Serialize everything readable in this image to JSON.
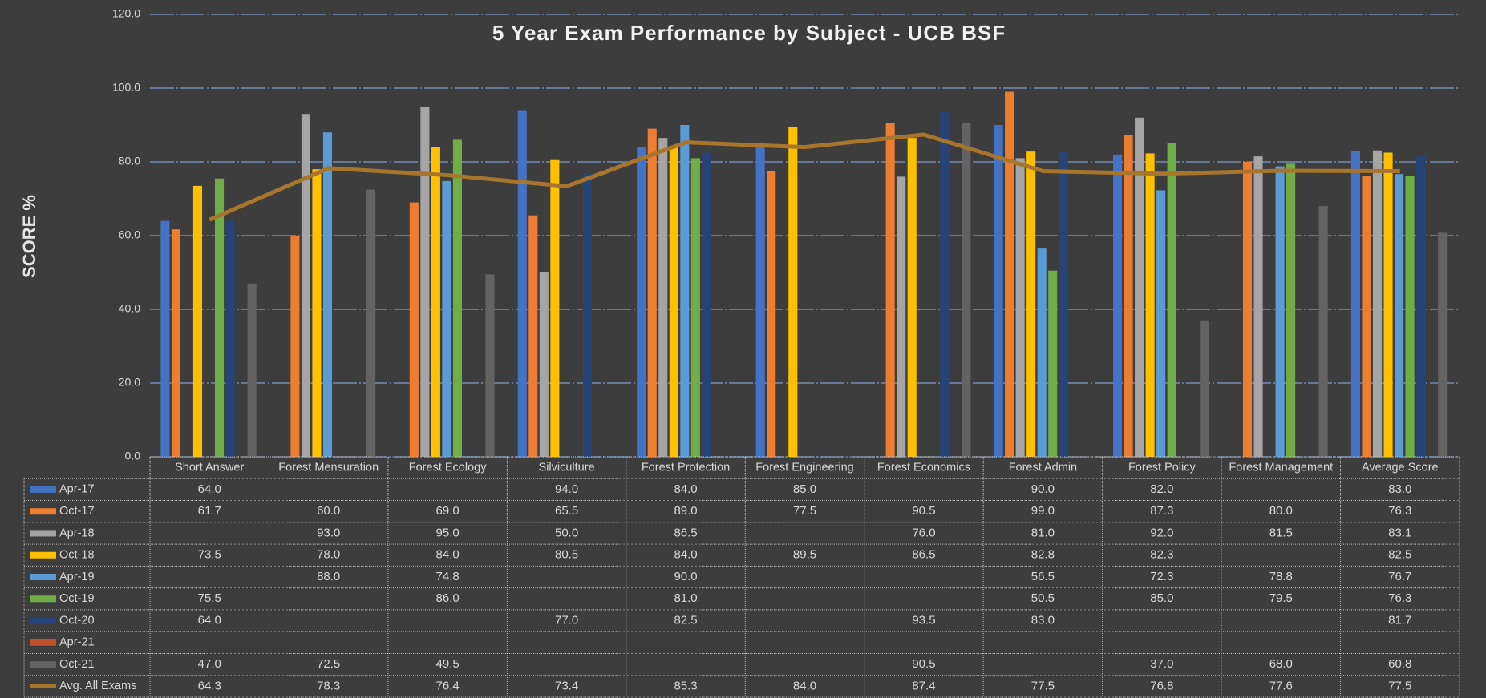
{
  "chart_data": {
    "type": "bar",
    "title": "5 Year Exam Performance by Subject - UCB BSF",
    "y_label": "SCORE %",
    "categories": [
      "Short Answer",
      "Forest Mensuration",
      "Forest Ecology",
      "Silviculture",
      "Forest Protection",
      "Forest Engineering",
      "Forest Economics",
      "Forest Admin",
      "Forest Policy",
      "Forest Management",
      "Average Score"
    ],
    "ylim": [
      0,
      120
    ],
    "yticks": [
      {
        "value": 0,
        "label": "0.0"
      },
      {
        "value": 20,
        "label": "20.0"
      },
      {
        "value": 40,
        "label": "40.0"
      },
      {
        "value": 60,
        "label": "60.0"
      },
      {
        "value": 80,
        "label": "80.0"
      },
      {
        "value": 100,
        "label": "100.0"
      },
      {
        "value": 120,
        "label": "120.0"
      }
    ],
    "grid": true,
    "series": [
      {
        "name": "Apr-17",
        "color": "#4472c4",
        "values": [
          64.0,
          null,
          null,
          94.0,
          84.0,
          85.0,
          null,
          90.0,
          82.0,
          null,
          83.0
        ],
        "value_labels": [
          "64.0",
          null,
          null,
          "94.0",
          "84.0",
          "85.0",
          null,
          "90.0",
          "82.0",
          null,
          "83.0"
        ]
      },
      {
        "name": "Oct-17",
        "color": "#ed7d31",
        "values": [
          61.7,
          60.0,
          69.0,
          65.5,
          89.0,
          77.5,
          90.5,
          99.0,
          87.3,
          80.0,
          76.3
        ],
        "value_labels": [
          "61.7",
          "60.0",
          "69.0",
          "65.5",
          "89.0",
          "77.5",
          "90.5",
          "99.0",
          "87.3",
          "80.0",
          "76.3"
        ]
      },
      {
        "name": "Apr-18",
        "color": "#a5a5a5",
        "values": [
          null,
          93.0,
          95.0,
          50.0,
          86.5,
          null,
          76.0,
          81.0,
          92.0,
          81.5,
          83.1
        ],
        "value_labels": [
          null,
          "93.0",
          "95.0",
          "50.0",
          "86.5",
          null,
          "76.0",
          "81.0",
          "92.0",
          "81.5",
          "83.1"
        ]
      },
      {
        "name": "Oct-18",
        "color": "#ffc000",
        "values": [
          73.5,
          78.0,
          84.0,
          80.5,
          84.0,
          89.5,
          86.5,
          82.8,
          82.3,
          null,
          82.5
        ],
        "value_labels": [
          "73.5",
          "78.0",
          "84.0",
          "80.5",
          "84.0",
          "89.5",
          "86.5",
          "82.8",
          "82.3",
          null,
          "82.5"
        ]
      },
      {
        "name": "Apr-19",
        "color": "#5b9bd5",
        "values": [
          null,
          88.0,
          74.8,
          null,
          90.0,
          null,
          null,
          56.5,
          72.3,
          78.8,
          76.7
        ],
        "value_labels": [
          null,
          "88.0",
          "74.8",
          null,
          "90.0",
          null,
          null,
          "56.5",
          "72.3",
          "78.8",
          "76.7"
        ]
      },
      {
        "name": "Oct-19",
        "color": "#70ad47",
        "values": [
          75.5,
          null,
          86.0,
          null,
          81.0,
          null,
          null,
          50.5,
          85.0,
          79.5,
          76.3
        ],
        "value_labels": [
          "75.5",
          null,
          "86.0",
          null,
          "81.0",
          null,
          null,
          "50.5",
          "85.0",
          "79.5",
          "76.3"
        ]
      },
      {
        "name": "Oct-20",
        "color": "#264478",
        "values": [
          64.0,
          null,
          null,
          77.0,
          82.5,
          null,
          93.5,
          83.0,
          null,
          null,
          81.7
        ],
        "value_labels": [
          "64.0",
          null,
          null,
          "77.0",
          "82.5",
          null,
          "93.5",
          "83.0",
          null,
          null,
          "81.7"
        ]
      },
      {
        "name": "Apr-21",
        "color": "#c0502a",
        "values": [
          null,
          null,
          null,
          null,
          null,
          null,
          null,
          null,
          null,
          null,
          null
        ],
        "value_labels": [
          null,
          null,
          null,
          null,
          null,
          null,
          null,
          null,
          null,
          null,
          null
        ]
      },
      {
        "name": "Oct-21",
        "color": "#636363",
        "values": [
          47.0,
          72.5,
          49.5,
          null,
          null,
          null,
          90.5,
          null,
          37.0,
          68.0,
          60.8
        ],
        "value_labels": [
          "47.0",
          "72.5",
          "49.5",
          null,
          null,
          null,
          "90.5",
          null,
          "37.0",
          "68.0",
          "60.8"
        ]
      },
      {
        "name": "Avg. All Exams",
        "color": "#a8752c",
        "type": "line",
        "values": [
          64.3,
          78.3,
          76.4,
          73.4,
          85.3,
          84.0,
          87.4,
          77.5,
          76.8,
          77.6,
          77.5
        ],
        "value_labels": [
          "64.3",
          "78.3",
          "76.4",
          "73.4",
          "85.3",
          "84.0",
          "87.4",
          "77.5",
          "76.8",
          "77.6",
          "77.5"
        ]
      }
    ]
  }
}
